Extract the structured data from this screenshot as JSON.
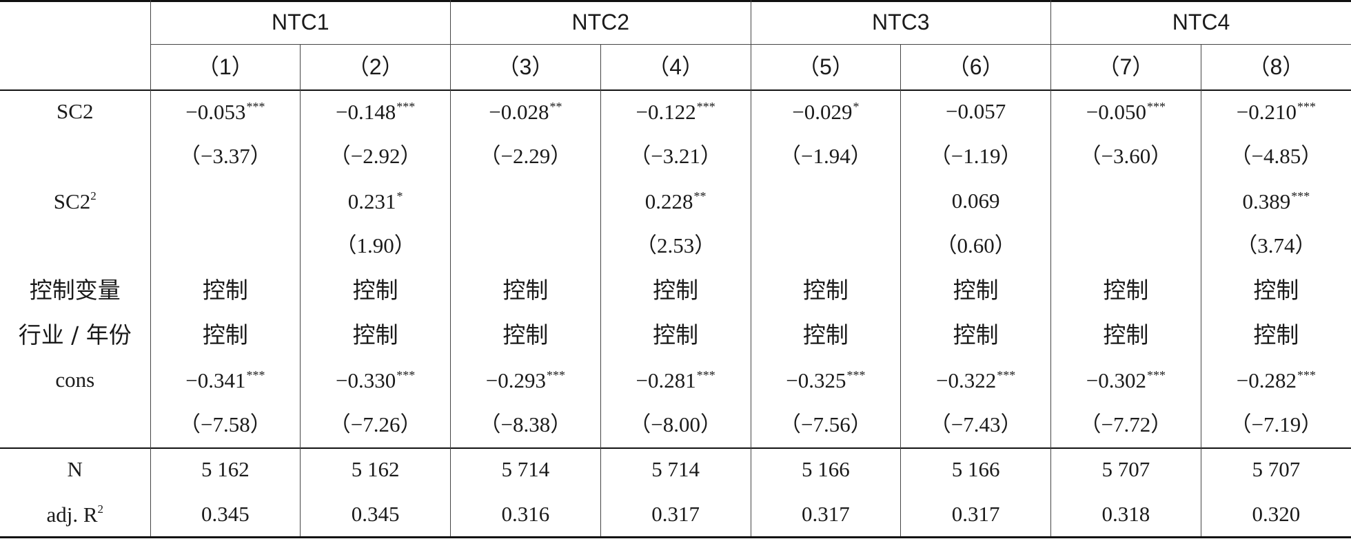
{
  "table": {
    "groups": [
      "NTC1",
      "NTC2",
      "NTC3",
      "NTC4"
    ],
    "columns": [
      "（1）",
      "（2）",
      "（3）",
      "（4）",
      "（5）",
      "（6）",
      "（7）",
      "（8）"
    ],
    "rows": [
      {
        "label": "SC2",
        "label_sup": "",
        "cells": [
          {
            "v": "−0.053",
            "s": "***"
          },
          {
            "v": "−0.148",
            "s": "***"
          },
          {
            "v": "−0.028",
            "s": "**"
          },
          {
            "v": "−0.122",
            "s": "***"
          },
          {
            "v": "−0.029",
            "s": "*"
          },
          {
            "v": "−0.057",
            "s": ""
          },
          {
            "v": "−0.050",
            "s": "***"
          },
          {
            "v": "−0.210",
            "s": "***"
          }
        ]
      },
      {
        "label": "",
        "label_sup": "",
        "cells": [
          {
            "v": "（−3.37）",
            "s": ""
          },
          {
            "v": "（−2.92）",
            "s": ""
          },
          {
            "v": "（−2.29）",
            "s": ""
          },
          {
            "v": "（−3.21）",
            "s": ""
          },
          {
            "v": "（−1.94）",
            "s": ""
          },
          {
            "v": "（−1.19）",
            "s": ""
          },
          {
            "v": "（−3.60）",
            "s": ""
          },
          {
            "v": "（−4.85）",
            "s": ""
          }
        ]
      },
      {
        "label": "SC2",
        "label_sup": "2",
        "cells": [
          {
            "v": "",
            "s": ""
          },
          {
            "v": "0.231",
            "s": "*"
          },
          {
            "v": "",
            "s": ""
          },
          {
            "v": "0.228",
            "s": "**"
          },
          {
            "v": "",
            "s": ""
          },
          {
            "v": "0.069",
            "s": ""
          },
          {
            "v": "",
            "s": ""
          },
          {
            "v": "0.389",
            "s": "***"
          }
        ]
      },
      {
        "label": "",
        "label_sup": "",
        "cells": [
          {
            "v": "",
            "s": ""
          },
          {
            "v": "（1.90）",
            "s": ""
          },
          {
            "v": "",
            "s": ""
          },
          {
            "v": "（2.53）",
            "s": ""
          },
          {
            "v": "",
            "s": ""
          },
          {
            "v": "（0.60）",
            "s": ""
          },
          {
            "v": "",
            "s": ""
          },
          {
            "v": "（3.74）",
            "s": ""
          }
        ]
      },
      {
        "label": "控制变量",
        "label_sup": "",
        "cjk": true,
        "cells": [
          {
            "v": "控制",
            "s": ""
          },
          {
            "v": "控制",
            "s": ""
          },
          {
            "v": "控制",
            "s": ""
          },
          {
            "v": "控制",
            "s": ""
          },
          {
            "v": "控制",
            "s": ""
          },
          {
            "v": "控制",
            "s": ""
          },
          {
            "v": "控制",
            "s": ""
          },
          {
            "v": "控制",
            "s": ""
          }
        ]
      },
      {
        "label": "行业 / 年份",
        "label_sup": "",
        "cjk": true,
        "cells": [
          {
            "v": "控制",
            "s": ""
          },
          {
            "v": "控制",
            "s": ""
          },
          {
            "v": "控制",
            "s": ""
          },
          {
            "v": "控制",
            "s": ""
          },
          {
            "v": "控制",
            "s": ""
          },
          {
            "v": "控制",
            "s": ""
          },
          {
            "v": "控制",
            "s": ""
          },
          {
            "v": "控制",
            "s": ""
          }
        ]
      },
      {
        "label": "cons",
        "label_sup": "",
        "cells": [
          {
            "v": "−0.341",
            "s": "***"
          },
          {
            "v": "−0.330",
            "s": "***"
          },
          {
            "v": "−0.293",
            "s": "***"
          },
          {
            "v": "−0.281",
            "s": "***"
          },
          {
            "v": "−0.325",
            "s": "***"
          },
          {
            "v": "−0.322",
            "s": "***"
          },
          {
            "v": "−0.302",
            "s": "***"
          },
          {
            "v": "−0.282",
            "s": "***"
          }
        ]
      },
      {
        "label": "",
        "label_sup": "",
        "cells": [
          {
            "v": "（−7.58）",
            "s": ""
          },
          {
            "v": "（−7.26）",
            "s": ""
          },
          {
            "v": "（−8.38）",
            "s": ""
          },
          {
            "v": "（−8.00）",
            "s": ""
          },
          {
            "v": "（−7.56）",
            "s": ""
          },
          {
            "v": "（−7.43）",
            "s": ""
          },
          {
            "v": "（−7.72）",
            "s": ""
          },
          {
            "v": "（−7.19）",
            "s": ""
          }
        ]
      }
    ],
    "footer_rows": [
      {
        "label": "N",
        "label_sup": "",
        "cells": [
          {
            "v": "5 162",
            "s": ""
          },
          {
            "v": "5 162",
            "s": ""
          },
          {
            "v": "5 714",
            "s": ""
          },
          {
            "v": "5 714",
            "s": ""
          },
          {
            "v": "5 166",
            "s": ""
          },
          {
            "v": "5 166",
            "s": ""
          },
          {
            "v": "5 707",
            "s": ""
          },
          {
            "v": "5 707",
            "s": ""
          }
        ]
      },
      {
        "label": "adj. R",
        "label_sup": "2",
        "cells": [
          {
            "v": "0.345",
            "s": ""
          },
          {
            "v": "0.345",
            "s": ""
          },
          {
            "v": "0.316",
            "s": ""
          },
          {
            "v": "0.317",
            "s": ""
          },
          {
            "v": "0.317",
            "s": ""
          },
          {
            "v": "0.317",
            "s": ""
          },
          {
            "v": "0.318",
            "s": ""
          },
          {
            "v": "0.320",
            "s": ""
          }
        ]
      }
    ]
  }
}
